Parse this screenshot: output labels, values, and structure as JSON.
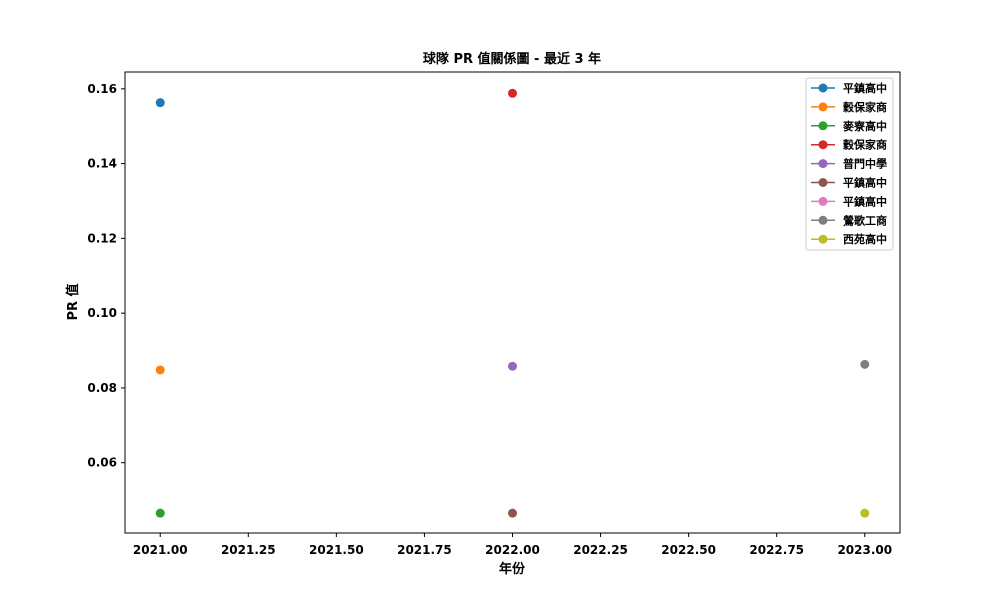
{
  "chart_data": {
    "type": "scatter",
    "title": "球隊 PR 值關係圖 - 最近 3 年",
    "xlabel": "年份",
    "ylabel": "PR 值",
    "xlim": [
      2020.9,
      2023.1
    ],
    "ylim": [
      0.0412,
      0.1645
    ],
    "x_ticks": [
      "2021.00",
      "2021.25",
      "2021.50",
      "2021.75",
      "2022.00",
      "2022.25",
      "2022.50",
      "2022.75",
      "2023.00"
    ],
    "x_tick_values": [
      2021.0,
      2021.25,
      2021.5,
      2021.75,
      2022.0,
      2022.25,
      2022.5,
      2022.75,
      2023.0
    ],
    "y_ticks": [
      "0.06",
      "0.08",
      "0.10",
      "0.12",
      "0.14",
      "0.16"
    ],
    "y_tick_values": [
      0.06,
      0.08,
      0.1,
      0.12,
      0.14,
      0.16
    ],
    "legend_position": "top-right",
    "grid": false,
    "series": [
      {
        "name": "平鎮高中",
        "color": "#1f77b4",
        "x": [
          2021
        ],
        "y": [
          0.1563
        ]
      },
      {
        "name": "穀保家商",
        "color": "#ff7f0e",
        "x": [
          2021
        ],
        "y": [
          0.0848
        ]
      },
      {
        "name": "麥寮高中",
        "color": "#2ca02c",
        "x": [
          2021
        ],
        "y": [
          0.0465
        ]
      },
      {
        "name": "穀保家商",
        "color": "#d62728",
        "x": [
          2022
        ],
        "y": [
          0.1588
        ]
      },
      {
        "name": "普門中學",
        "color": "#9467bd",
        "x": [
          2022
        ],
        "y": [
          0.0858
        ]
      },
      {
        "name": "平鎮高中",
        "color": "#8c564b",
        "x": [
          2022
        ],
        "y": [
          0.0465
        ]
      },
      {
        "name": "平鎮高中",
        "color": "#e377c2",
        "x": [],
        "y": []
      },
      {
        "name": "鶯歌工商",
        "color": "#7f7f7f",
        "x": [
          2023
        ],
        "y": [
          0.0863
        ]
      },
      {
        "name": "西苑高中",
        "color": "#bcbd22",
        "x": [
          2023
        ],
        "y": [
          0.0465
        ]
      }
    ]
  }
}
